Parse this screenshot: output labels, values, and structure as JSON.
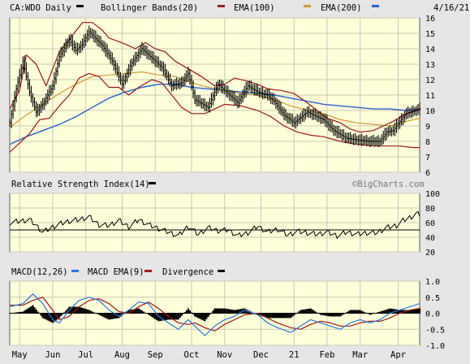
{
  "colors": {
    "frame_bg": "#e6e6e6",
    "panel_bg": "#ffffd8",
    "grid": "#c9c9b5",
    "price_bars": "#000000",
    "bollinger": "#a01818",
    "ema100": "#d09a30",
    "ema200": "#2862d8",
    "rsi_line": "#000000",
    "macd_line": "#2878e0",
    "macd_ema": "#a01818",
    "divergence": "#000000"
  },
  "chart_data": [
    {
      "type": "line",
      "panel": "price",
      "title": "CA:WDO Daily",
      "date": "4/16/21",
      "watermark": "©BigCharts.com",
      "legend": [
        "Bollinger Bands(20)",
        "EMA(100)",
        "EMA(200)"
      ],
      "ylim": [
        6,
        16
      ],
      "y_ticks": [
        6,
        7,
        8,
        9,
        10,
        11,
        12,
        13,
        14,
        15,
        16
      ],
      "x_labels": [
        "May",
        "Jun",
        "Jul",
        "Aug",
        "Sep",
        "Oct",
        "Nov",
        "Dec",
        "21",
        "Feb",
        "Mar",
        "Apr"
      ],
      "x_label_positions": [
        6,
        26,
        46,
        68,
        88,
        110,
        130,
        152,
        172,
        192,
        212,
        235
      ],
      "x_range": [
        0,
        248
      ],
      "price": [
        [
          0,
          9.2
        ],
        [
          4,
          11.4
        ],
        [
          8,
          13.2
        ],
        [
          12,
          11.2
        ],
        [
          16,
          9.9
        ],
        [
          20,
          10.4
        ],
        [
          26,
          11.6
        ],
        [
          30,
          13.5
        ],
        [
          36,
          14.6
        ],
        [
          40,
          13.9
        ],
        [
          44,
          14.3
        ],
        [
          48,
          15.1
        ],
        [
          56,
          14.2
        ],
        [
          62,
          13.2
        ],
        [
          68,
          11.7
        ],
        [
          74,
          13.1
        ],
        [
          80,
          14.0
        ],
        [
          86,
          13.4
        ],
        [
          92,
          12.8
        ],
        [
          98,
          11.6
        ],
        [
          104,
          11.8
        ],
        [
          108,
          12.4
        ],
        [
          112,
          10.7
        ],
        [
          120,
          10.2
        ],
        [
          126,
          11.7
        ],
        [
          132,
          11.1
        ],
        [
          138,
          10.5
        ],
        [
          144,
          11.6
        ],
        [
          150,
          11.2
        ],
        [
          156,
          11.0
        ],
        [
          160,
          10.6
        ],
        [
          166,
          9.7
        ],
        [
          172,
          9.2
        ],
        [
          180,
          9.9
        ],
        [
          184,
          9.7
        ],
        [
          190,
          9.4
        ],
        [
          196,
          8.7
        ],
        [
          204,
          8.2
        ],
        [
          210,
          8.1
        ],
        [
          218,
          8.0
        ],
        [
          224,
          8.0
        ],
        [
          228,
          8.6
        ],
        [
          232,
          8.7
        ],
        [
          236,
          9.3
        ],
        [
          240,
          9.8
        ],
        [
          246,
          10.0
        ],
        [
          248,
          10.1
        ]
      ],
      "bollinger_upper": [
        [
          0,
          10.1
        ],
        [
          6,
          11.3
        ],
        [
          10,
          13.6
        ],
        [
          16,
          13.0
        ],
        [
          22,
          11.6
        ],
        [
          30,
          13.8
        ],
        [
          36,
          14.6
        ],
        [
          44,
          15.7
        ],
        [
          50,
          15.7
        ],
        [
          56,
          15.2
        ],
        [
          60,
          14.7
        ],
        [
          70,
          14.3
        ],
        [
          76,
          14.0
        ],
        [
          82,
          14.4
        ],
        [
          88,
          14.0
        ],
        [
          94,
          13.8
        ],
        [
          100,
          13.2
        ],
        [
          108,
          12.7
        ],
        [
          116,
          12.2
        ],
        [
          124,
          11.6
        ],
        [
          130,
          11.7
        ],
        [
          136,
          12.1
        ],
        [
          144,
          11.9
        ],
        [
          150,
          11.7
        ],
        [
          156,
          11.4
        ],
        [
          164,
          11.3
        ],
        [
          172,
          11.1
        ],
        [
          180,
          10.5
        ],
        [
          186,
          10.0
        ],
        [
          192,
          9.5
        ],
        [
          200,
          9.2
        ],
        [
          206,
          8.8
        ],
        [
          212,
          8.6
        ],
        [
          220,
          8.7
        ],
        [
          226,
          9.0
        ],
        [
          232,
          9.3
        ],
        [
          240,
          9.8
        ],
        [
          248,
          10.1
        ]
      ],
      "bollinger_lower": [
        [
          0,
          7.3
        ],
        [
          6,
          7.9
        ],
        [
          12,
          8.5
        ],
        [
          18,
          9.4
        ],
        [
          24,
          9.5
        ],
        [
          30,
          10.3
        ],
        [
          36,
          11.0
        ],
        [
          42,
          12.1
        ],
        [
          48,
          12.4
        ],
        [
          54,
          12.2
        ],
        [
          60,
          11.5
        ],
        [
          66,
          11.5
        ],
        [
          72,
          11.0
        ],
        [
          78,
          11.5
        ],
        [
          86,
          12.0
        ],
        [
          92,
          11.8
        ],
        [
          98,
          11.0
        ],
        [
          104,
          10.2
        ],
        [
          110,
          9.8
        ],
        [
          118,
          9.8
        ],
        [
          124,
          10.1
        ],
        [
          130,
          10.4
        ],
        [
          140,
          10.3
        ],
        [
          150,
          10.0
        ],
        [
          158,
          9.6
        ],
        [
          166,
          9.0
        ],
        [
          174,
          8.6
        ],
        [
          182,
          8.4
        ],
        [
          190,
          8.3
        ],
        [
          200,
          8.0
        ],
        [
          210,
          7.8
        ],
        [
          220,
          7.7
        ],
        [
          228,
          7.7
        ],
        [
          236,
          7.7
        ],
        [
          244,
          7.6
        ],
        [
          248,
          7.6
        ]
      ],
      "ema100": [
        [
          0,
          8.9
        ],
        [
          10,
          9.7
        ],
        [
          20,
          10.4
        ],
        [
          30,
          11.1
        ],
        [
          40,
          11.7
        ],
        [
          50,
          12.2
        ],
        [
          60,
          12.3
        ],
        [
          70,
          12.4
        ],
        [
          80,
          12.5
        ],
        [
          90,
          12.3
        ],
        [
          100,
          12.2
        ],
        [
          110,
          11.8
        ],
        [
          120,
          11.5
        ],
        [
          130,
          11.3
        ],
        [
          140,
          11.1
        ],
        [
          150,
          11.0
        ],
        [
          160,
          10.7
        ],
        [
          170,
          10.3
        ],
        [
          180,
          10.0
        ],
        [
          190,
          9.8
        ],
        [
          200,
          9.4
        ],
        [
          210,
          9.2
        ],
        [
          220,
          9.1
        ],
        [
          230,
          9.0
        ],
        [
          240,
          9.3
        ],
        [
          248,
          9.5
        ]
      ],
      "ema200": [
        [
          0,
          7.8
        ],
        [
          10,
          8.3
        ],
        [
          20,
          8.7
        ],
        [
          30,
          9.1
        ],
        [
          40,
          9.6
        ],
        [
          50,
          10.2
        ],
        [
          60,
          10.8
        ],
        [
          70,
          11.2
        ],
        [
          80,
          11.5
        ],
        [
          90,
          11.7
        ],
        [
          100,
          11.7
        ],
        [
          110,
          11.5
        ],
        [
          120,
          11.4
        ],
        [
          130,
          11.3
        ],
        [
          140,
          11.2
        ],
        [
          150,
          11.1
        ],
        [
          160,
          11.0
        ],
        [
          170,
          10.8
        ],
        [
          180,
          10.6
        ],
        [
          190,
          10.4
        ],
        [
          200,
          10.3
        ],
        [
          210,
          10.2
        ],
        [
          220,
          10.1
        ],
        [
          230,
          10.1
        ],
        [
          240,
          10.0
        ],
        [
          248,
          10.1
        ]
      ]
    },
    {
      "type": "line",
      "panel": "rsi",
      "title": "Relative Strength Index(14)",
      "ylim": [
        20,
        100
      ],
      "y_ticks": [
        20,
        40,
        60,
        80,
        100
      ],
      "reference_line": 50,
      "series": [
        [
          0,
          60
        ],
        [
          6,
          62
        ],
        [
          12,
          64
        ],
        [
          16,
          56
        ],
        [
          20,
          47
        ],
        [
          26,
          54
        ],
        [
          30,
          58
        ],
        [
          36,
          62
        ],
        [
          42,
          64
        ],
        [
          48,
          68
        ],
        [
          54,
          57
        ],
        [
          60,
          56
        ],
        [
          66,
          63
        ],
        [
          72,
          54
        ],
        [
          78,
          64
        ],
        [
          84,
          57
        ],
        [
          90,
          52
        ],
        [
          96,
          47
        ],
        [
          102,
          42
        ],
        [
          108,
          55
        ],
        [
          114,
          44
        ],
        [
          120,
          53
        ],
        [
          126,
          49
        ],
        [
          132,
          50
        ],
        [
          138,
          42
        ],
        [
          144,
          46
        ],
        [
          150,
          55
        ],
        [
          156,
          47
        ],
        [
          162,
          51
        ],
        [
          168,
          43
        ],
        [
          174,
          48
        ],
        [
          180,
          46
        ],
        [
          186,
          44
        ],
        [
          192,
          47
        ],
        [
          198,
          42
        ],
        [
          204,
          47
        ],
        [
          210,
          44
        ],
        [
          216,
          46
        ],
        [
          222,
          46
        ],
        [
          228,
          53
        ],
        [
          234,
          56
        ],
        [
          238,
          63
        ],
        [
          242,
          67
        ],
        [
          246,
          72
        ],
        [
          248,
          71
        ]
      ]
    },
    {
      "type": "line",
      "panel": "macd",
      "title": "MACD(12,26)",
      "legend": [
        "MACD(12,26)",
        "MACD EMA(9)",
        "Divergence"
      ],
      "ylim": [
        -1.0,
        1.0
      ],
      "y_ticks": [
        -1.0,
        -0.5,
        0.0,
        0.5,
        1.0
      ],
      "y_tick_labels": [
        "-1.0",
        "-0.5",
        "0.0",
        "0.5",
        "1.0"
      ],
      "macd": [
        [
          0,
          0.2
        ],
        [
          8,
          0.3
        ],
        [
          14,
          0.6
        ],
        [
          20,
          0.3
        ],
        [
          26,
          -0.2
        ],
        [
          30,
          -0.3
        ],
        [
          36,
          0.1
        ],
        [
          42,
          0.4
        ],
        [
          48,
          0.5
        ],
        [
          54,
          0.4
        ],
        [
          60,
          0.1
        ],
        [
          66,
          -0.1
        ],
        [
          72,
          0.1
        ],
        [
          78,
          0.35
        ],
        [
          84,
          0.3
        ],
        [
          90,
          -0.1
        ],
        [
          96,
          -0.3
        ],
        [
          102,
          -0.5
        ],
        [
          108,
          -0.2
        ],
        [
          112,
          -0.4
        ],
        [
          118,
          -0.7
        ],
        [
          124,
          -0.4
        ],
        [
          130,
          -0.2
        ],
        [
          136,
          -0.1
        ],
        [
          142,
          0.1
        ],
        [
          150,
          -0.05
        ],
        [
          156,
          -0.3
        ],
        [
          162,
          -0.45
        ],
        [
          170,
          -0.6
        ],
        [
          176,
          -0.4
        ],
        [
          182,
          -0.2
        ],
        [
          188,
          -0.3
        ],
        [
          194,
          -0.4
        ],
        [
          200,
          -0.5
        ],
        [
          206,
          -0.3
        ],
        [
          212,
          -0.2
        ],
        [
          218,
          -0.3
        ],
        [
          224,
          -0.2
        ],
        [
          230,
          0.0
        ],
        [
          236,
          0.1
        ],
        [
          242,
          0.2
        ],
        [
          248,
          0.3
        ]
      ],
      "macd_ema": [
        [
          0,
          0.25
        ],
        [
          8,
          0.25
        ],
        [
          14,
          0.4
        ],
        [
          20,
          0.5
        ],
        [
          26,
          0.1
        ],
        [
          30,
          -0.2
        ],
        [
          36,
          -0.1
        ],
        [
          42,
          0.2
        ],
        [
          48,
          0.4
        ],
        [
          54,
          0.45
        ],
        [
          60,
          0.3
        ],
        [
          66,
          0.05
        ],
        [
          72,
          0.0
        ],
        [
          78,
          0.2
        ],
        [
          84,
          0.35
        ],
        [
          90,
          0.15
        ],
        [
          96,
          -0.1
        ],
        [
          102,
          -0.3
        ],
        [
          108,
          -0.35
        ],
        [
          112,
          -0.3
        ],
        [
          118,
          -0.45
        ],
        [
          124,
          -0.55
        ],
        [
          130,
          -0.35
        ],
        [
          136,
          -0.2
        ],
        [
          142,
          -0.05
        ],
        [
          150,
          0.0
        ],
        [
          156,
          -0.15
        ],
        [
          162,
          -0.3
        ],
        [
          170,
          -0.45
        ],
        [
          176,
          -0.5
        ],
        [
          182,
          -0.35
        ],
        [
          188,
          -0.25
        ],
        [
          194,
          -0.3
        ],
        [
          200,
          -0.4
        ],
        [
          206,
          -0.4
        ],
        [
          212,
          -0.3
        ],
        [
          218,
          -0.25
        ],
        [
          224,
          -0.25
        ],
        [
          230,
          -0.15
        ],
        [
          236,
          0.0
        ],
        [
          242,
          0.1
        ],
        [
          248,
          0.15
        ]
      ],
      "divergence": [
        [
          0,
          0.0
        ],
        [
          8,
          0.05
        ],
        [
          14,
          0.25
        ],
        [
          20,
          -0.15
        ],
        [
          26,
          -0.3
        ],
        [
          30,
          -0.15
        ],
        [
          36,
          0.2
        ],
        [
          42,
          0.2
        ],
        [
          48,
          0.1
        ],
        [
          54,
          -0.05
        ],
        [
          60,
          -0.2
        ],
        [
          66,
          -0.15
        ],
        [
          72,
          0.1
        ],
        [
          78,
          0.15
        ],
        [
          84,
          -0.05
        ],
        [
          90,
          -0.25
        ],
        [
          96,
          -0.2
        ],
        [
          102,
          -0.2
        ],
        [
          108,
          0.15
        ],
        [
          112,
          -0.1
        ],
        [
          118,
          -0.25
        ],
        [
          124,
          0.15
        ],
        [
          130,
          0.15
        ],
        [
          136,
          0.1
        ],
        [
          142,
          0.15
        ],
        [
          150,
          -0.05
        ],
        [
          156,
          -0.15
        ],
        [
          162,
          -0.15
        ],
        [
          170,
          -0.15
        ],
        [
          176,
          0.1
        ],
        [
          182,
          0.15
        ],
        [
          188,
          -0.05
        ],
        [
          194,
          -0.1
        ],
        [
          200,
          -0.1
        ],
        [
          206,
          0.1
        ],
        [
          212,
          0.1
        ],
        [
          218,
          -0.05
        ],
        [
          224,
          0.05
        ],
        [
          230,
          0.15
        ],
        [
          236,
          0.1
        ],
        [
          242,
          0.1
        ],
        [
          248,
          0.15
        ]
      ]
    }
  ]
}
